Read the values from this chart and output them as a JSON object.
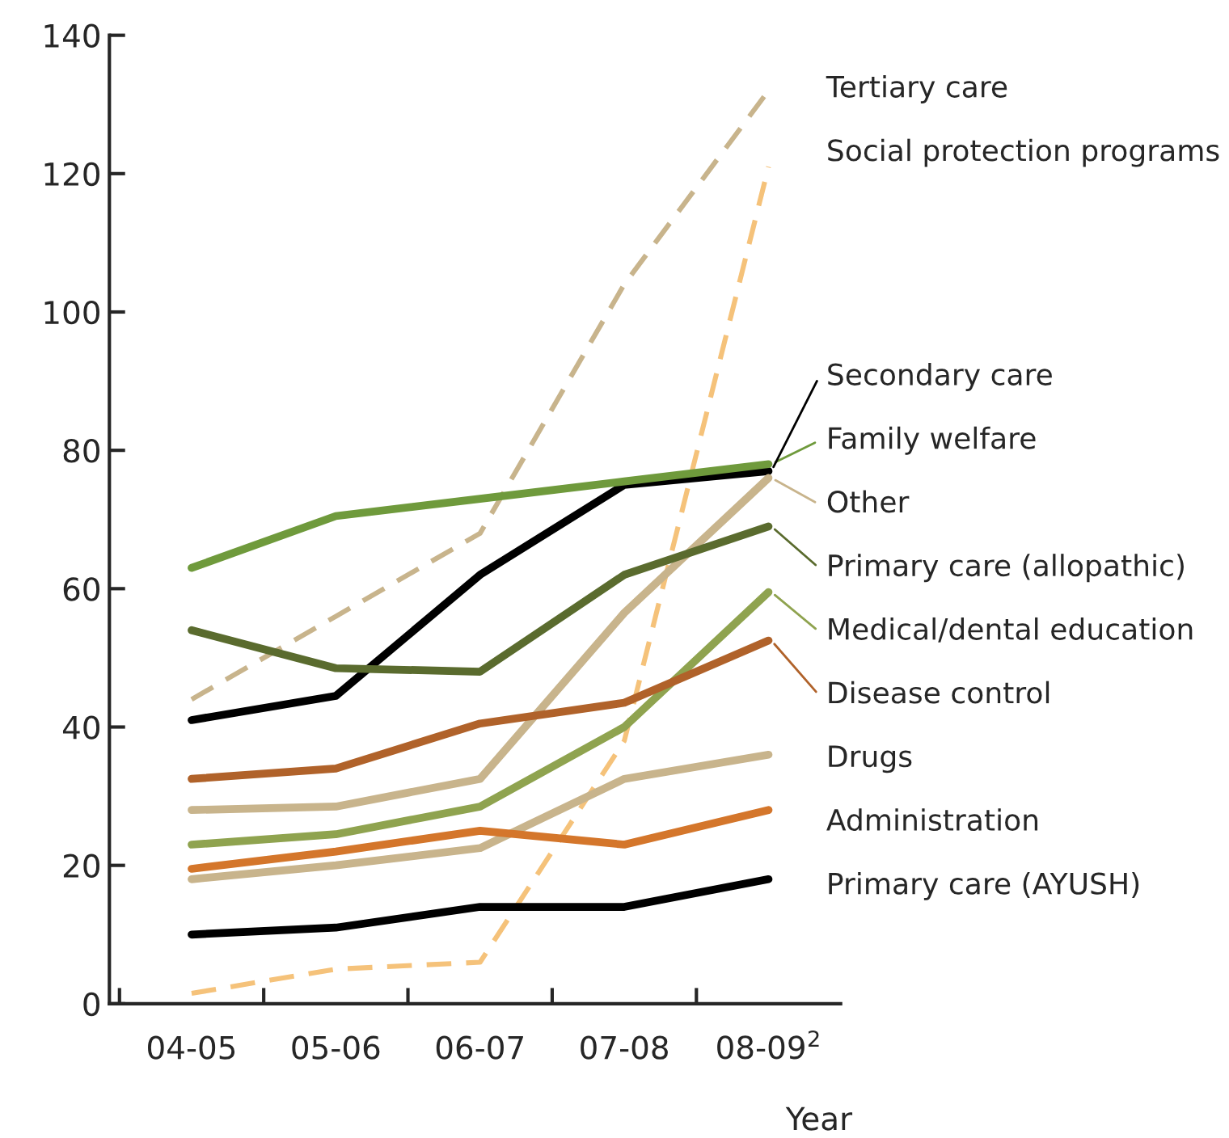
{
  "chart_data": {
    "type": "line",
    "xlabel": "Year",
    "categories": [
      "04-05",
      "05-06",
      "06-07",
      "07-08",
      "08-09$^{2}$"
    ],
    "ylim": [
      0,
      140
    ],
    "yticks": [
      0,
      20,
      40,
      60,
      80,
      100,
      120,
      140
    ],
    "grid": false,
    "legend": "right",
    "marker": "none",
    "series": [
      {
        "name": "Tertiary care",
        "color": "#c8b48c",
        "line_style": "dashed",
        "values": [
          44,
          56,
          68,
          104,
          132
        ]
      },
      {
        "name": "Social protection programs",
        "color": "#f5c27a",
        "line_style": "dashed",
        "values": [
          1.5,
          5,
          6,
          38,
          121
        ]
      },
      {
        "name": "Secondary care",
        "color": "#000000",
        "line_style": "solid",
        "values": [
          41,
          44.5,
          62,
          75,
          77
        ]
      },
      {
        "name": "Family welfare",
        "color": "#6f9a3c",
        "line_style": "solid",
        "values": [
          63,
          70.5,
          73,
          75.5,
          78
        ]
      },
      {
        "name": "Other",
        "color": "#c8b48c",
        "line_style": "solid",
        "values": [
          28,
          28.5,
          32.5,
          56.5,
          76
        ]
      },
      {
        "name": "Primary care (allopathic)",
        "color": "#5a6b2e",
        "line_style": "solid",
        "values": [
          54,
          48.5,
          48,
          62,
          69
        ]
      },
      {
        "name": "Medical/dental education",
        "color": "#8fa34f",
        "line_style": "solid",
        "values": [
          23,
          24.5,
          28.5,
          40,
          59.5
        ]
      },
      {
        "name": "Disease control",
        "color": "#b0622a",
        "line_style": "solid",
        "values": [
          32.5,
          34,
          40.5,
          43.5,
          52.5
        ]
      },
      {
        "name": "Drugs",
        "color": "#c8b48c",
        "line_style": "solid",
        "values": [
          18,
          20,
          22.5,
          32.5,
          36
        ]
      },
      {
        "name": "Administration",
        "color": "#d4762b",
        "line_style": "solid",
        "values": [
          19.5,
          22,
          25,
          23,
          28
        ]
      },
      {
        "name": "Primary care (AYUSH)",
        "color": "#000000",
        "line_style": "solid",
        "values": [
          10,
          11,
          14,
          14,
          18
        ]
      }
    ]
  }
}
